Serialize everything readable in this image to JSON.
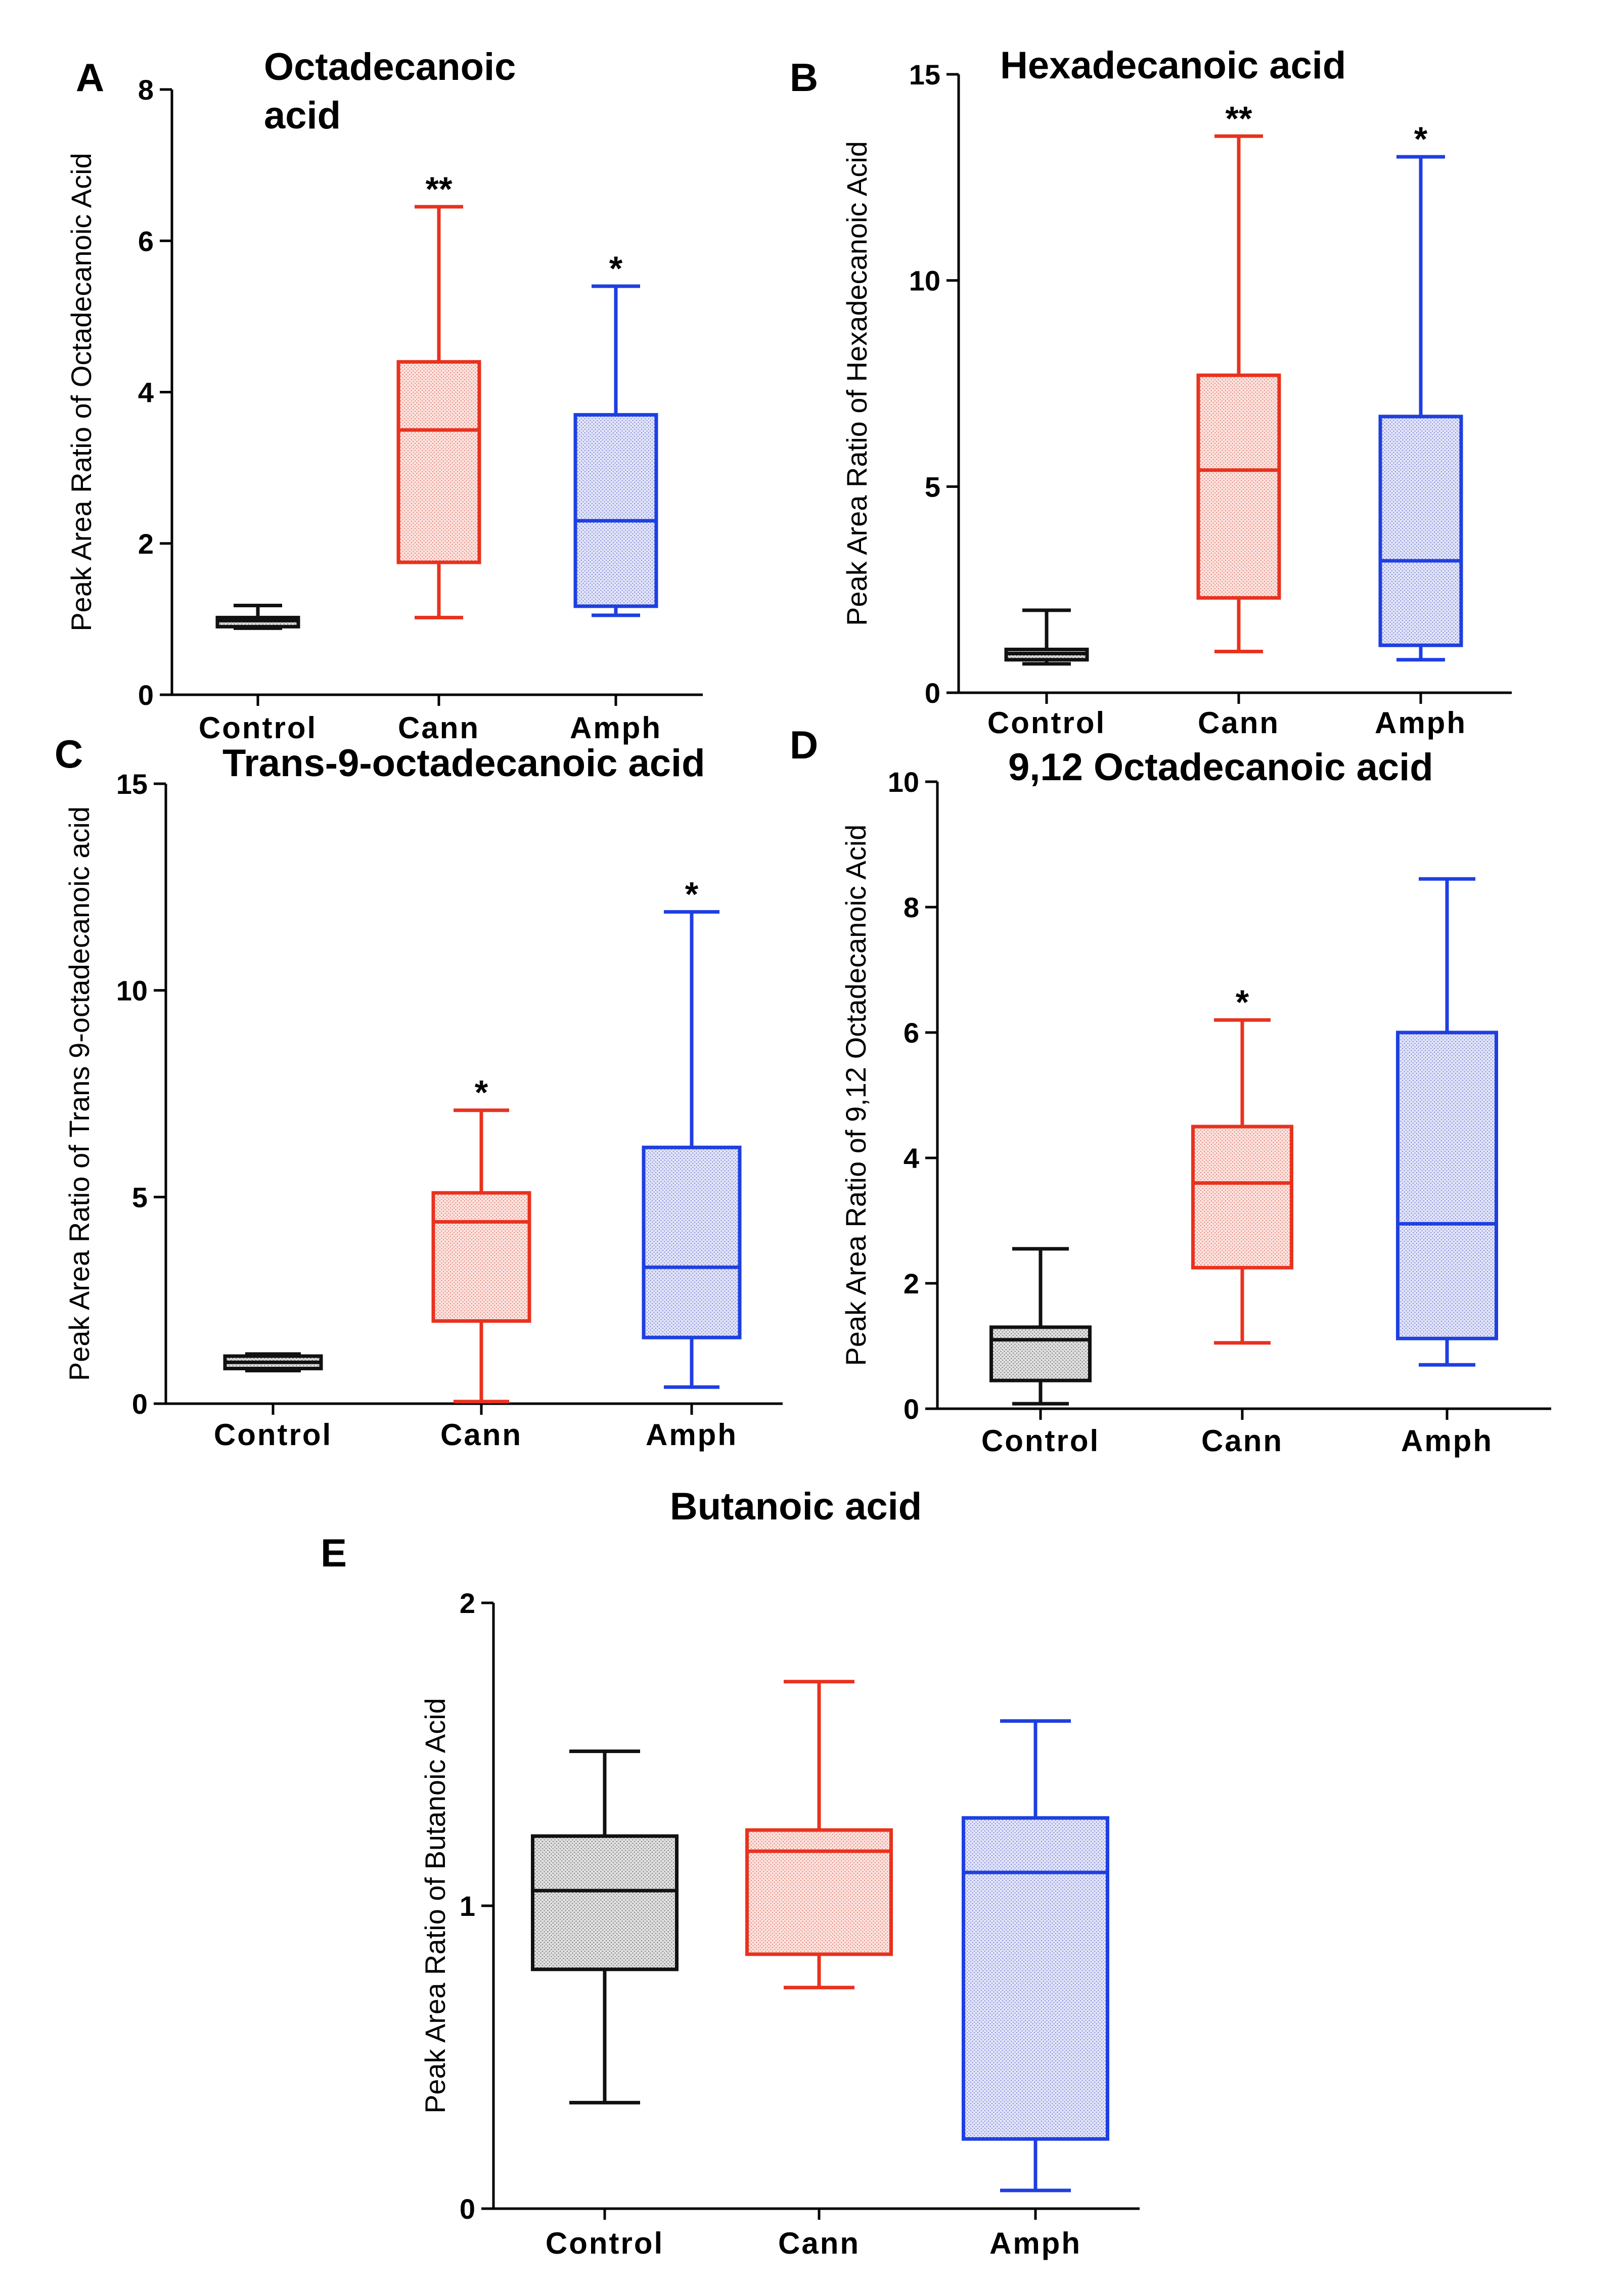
{
  "figure": {
    "colors": {
      "Control": "#111111",
      "Cann": "#e8321e",
      "Amph": "#1e3fe0"
    },
    "fills": {
      "Control": "#d6d6d6",
      "Cann": "#f6d2cc",
      "Amph": "#d2d6f4"
    }
  },
  "chart_data": [
    {
      "panel": "A",
      "type": "box",
      "title_lines": [
        "Octadecanoic",
        "acid"
      ],
      "ylabel": "Peak Area Ratio of Octadecanoic Acid",
      "ylim": [
        0,
        8
      ],
      "yticks": [
        0,
        2,
        4,
        6,
        8
      ],
      "categories": [
        "Control",
        "Cann",
        "Amph"
      ],
      "boxes": [
        {
          "group": "Control",
          "min": 0.88,
          "q1": 0.9,
          "median": 0.98,
          "q3": 1.02,
          "max": 1.18,
          "sig": ""
        },
        {
          "group": "Cann",
          "min": 1.02,
          "q1": 1.75,
          "median": 3.5,
          "q3": 4.4,
          "max": 6.45,
          "sig": "**"
        },
        {
          "group": "Amph",
          "min": 1.05,
          "q1": 1.17,
          "median": 2.3,
          "q3": 3.7,
          "max": 5.4,
          "sig": "*"
        }
      ]
    },
    {
      "panel": "B",
      "type": "box",
      "title_lines": [
        "Hexadecanoic acid"
      ],
      "ylabel": "Peak Area Ratio of Hexadecanoic Acid",
      "ylim": [
        0,
        15
      ],
      "yticks": [
        0,
        5,
        10,
        15
      ],
      "categories": [
        "Control",
        "Cann",
        "Amph"
      ],
      "boxes": [
        {
          "group": "Control",
          "min": 0.7,
          "q1": 0.8,
          "median": 0.95,
          "q3": 1.05,
          "max": 2.0,
          "sig": ""
        },
        {
          "group": "Cann",
          "min": 1.0,
          "q1": 2.3,
          "median": 5.4,
          "q3": 7.7,
          "max": 13.5,
          "sig": "**"
        },
        {
          "group": "Amph",
          "min": 0.8,
          "q1": 1.15,
          "median": 3.2,
          "q3": 6.7,
          "max": 13.0,
          "sig": "*"
        }
      ]
    },
    {
      "panel": "C",
      "type": "box",
      "title_lines": [
        "Trans-9-octadecanoic acid"
      ],
      "ylabel": "Peak Area Ratio of Trans 9-octadecanoic acid",
      "ylim": [
        0,
        15
      ],
      "yticks": [
        0,
        5,
        10,
        15
      ],
      "categories": [
        "Control",
        "Cann",
        "Amph"
      ],
      "boxes": [
        {
          "group": "Control",
          "min": 0.8,
          "q1": 0.85,
          "median": 1.0,
          "q3": 1.15,
          "max": 1.2,
          "sig": ""
        },
        {
          "group": "Cann",
          "min": 0.05,
          "q1": 2.0,
          "median": 4.4,
          "q3": 5.1,
          "max": 7.1,
          "sig": "*"
        },
        {
          "group": "Amph",
          "min": 0.4,
          "q1": 1.6,
          "median": 3.3,
          "q3": 6.2,
          "max": 11.9,
          "sig": "*"
        }
      ]
    },
    {
      "panel": "D",
      "type": "box",
      "title_lines": [
        "9,12 Octadecanoic  acid"
      ],
      "ylabel": "Peak Area Ratio of 9,12 Octadecanoic Acid",
      "ylim": [
        0,
        10
      ],
      "yticks": [
        0,
        2,
        4,
        6,
        8,
        10
      ],
      "categories": [
        "Control",
        "Cann",
        "Amph"
      ],
      "boxes": [
        {
          "group": "Control",
          "min": 0.08,
          "q1": 0.45,
          "median": 1.1,
          "q3": 1.3,
          "max": 2.55,
          "sig": ""
        },
        {
          "group": "Cann",
          "min": 1.05,
          "q1": 2.25,
          "median": 3.6,
          "q3": 4.5,
          "max": 6.2,
          "sig": "*"
        },
        {
          "group": "Amph",
          "min": 0.7,
          "q1": 1.12,
          "median": 2.95,
          "q3": 6.0,
          "max": 8.45,
          "sig": ""
        }
      ]
    },
    {
      "panel": "E",
      "type": "box",
      "title_lines": [
        "Butanoic acid"
      ],
      "ylabel": "Peak Area Ratio of Butanoic Acid",
      "ylim": [
        0,
        2
      ],
      "yticks": [
        0,
        1,
        2
      ],
      "categories": [
        "Control",
        "Cann",
        "Amph"
      ],
      "boxes": [
        {
          "group": "Control",
          "min": 0.35,
          "q1": 0.79,
          "median": 1.05,
          "q3": 1.23,
          "max": 1.51,
          "sig": ""
        },
        {
          "group": "Cann",
          "min": 0.73,
          "q1": 0.84,
          "median": 1.18,
          "q3": 1.25,
          "max": 1.74,
          "sig": ""
        },
        {
          "group": "Amph",
          "min": 0.06,
          "q1": 0.23,
          "median": 1.11,
          "q3": 1.29,
          "max": 1.61,
          "sig": ""
        }
      ]
    }
  ]
}
